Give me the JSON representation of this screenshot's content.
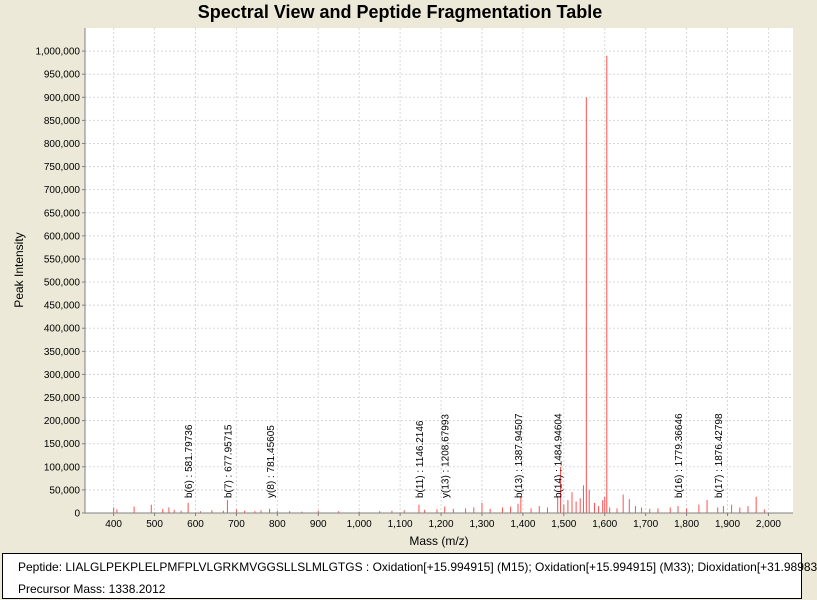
{
  "chart_data": {
    "type": "bar",
    "title": "Spectral View and Peptide Fragmentation Table",
    "xlabel": "Mass (m/z)",
    "ylabel": "Peak Intensity",
    "xlim": [
      330,
      2060
    ],
    "ylim": [
      0,
      1050000
    ],
    "x_ticks": [
      400,
      500,
      600,
      700,
      800,
      900,
      1000,
      1100,
      1200,
      1300,
      1400,
      1500,
      1600,
      1700,
      1800,
      1900,
      2000
    ],
    "x_tick_labels": [
      "400",
      "500",
      "600",
      "700",
      "800",
      "900",
      "1,000",
      "1,100",
      "1,200",
      "1,300",
      "1,400",
      "1,500",
      "1,600",
      "1,700",
      "1,800",
      "1,900",
      "2,000"
    ],
    "y_ticks": [
      0,
      50000,
      100000,
      150000,
      200000,
      250000,
      300000,
      350000,
      400000,
      450000,
      500000,
      550000,
      600000,
      650000,
      700000,
      750000,
      800000,
      850000,
      900000,
      950000,
      1000000
    ],
    "y_tick_labels": [
      "0",
      "50,000",
      "100,000",
      "150,000",
      "200,000",
      "250,000",
      "300,000",
      "350,000",
      "400,000",
      "450,000",
      "500,000",
      "550,000",
      "600,000",
      "650,000",
      "700,000",
      "750,000",
      "800,000",
      "850,000",
      "900,000",
      "950,000",
      "1,000,000"
    ],
    "grid": true,
    "series_color": "#ff5050",
    "peaks": [
      {
        "mz": 400,
        "intensity": 12000
      },
      {
        "mz": 408,
        "intensity": 8000
      },
      {
        "mz": 450,
        "intensity": 14000
      },
      {
        "mz": 492,
        "intensity": 18000
      },
      {
        "mz": 520,
        "intensity": 9000
      },
      {
        "mz": 535,
        "intensity": 12000
      },
      {
        "mz": 548,
        "intensity": 7000
      },
      {
        "mz": 565,
        "intensity": 5000
      },
      {
        "mz": 582,
        "intensity": 22000
      },
      {
        "mz": 612,
        "intensity": 4000
      },
      {
        "mz": 640,
        "intensity": 6000
      },
      {
        "mz": 668,
        "intensity": 5000
      },
      {
        "mz": 678,
        "intensity": 28000
      },
      {
        "mz": 700,
        "intensity": 8000
      },
      {
        "mz": 720,
        "intensity": 5000
      },
      {
        "mz": 745,
        "intensity": 4000
      },
      {
        "mz": 760,
        "intensity": 6000
      },
      {
        "mz": 781,
        "intensity": 9000
      },
      {
        "mz": 800,
        "intensity": 5000
      },
      {
        "mz": 830,
        "intensity": 4000
      },
      {
        "mz": 860,
        "intensity": 3000
      },
      {
        "mz": 900,
        "intensity": 5000
      },
      {
        "mz": 950,
        "intensity": 4000
      },
      {
        "mz": 1000,
        "intensity": 3000
      },
      {
        "mz": 1050,
        "intensity": 4000
      },
      {
        "mz": 1080,
        "intensity": 5000
      },
      {
        "mz": 1110,
        "intensity": 6000
      },
      {
        "mz": 1146,
        "intensity": 18000
      },
      {
        "mz": 1160,
        "intensity": 7000
      },
      {
        "mz": 1190,
        "intensity": 8000
      },
      {
        "mz": 1209,
        "intensity": 14000
      },
      {
        "mz": 1230,
        "intensity": 9000
      },
      {
        "mz": 1260,
        "intensity": 10000
      },
      {
        "mz": 1280,
        "intensity": 12000
      },
      {
        "mz": 1300,
        "intensity": 22000
      },
      {
        "mz": 1320,
        "intensity": 9000
      },
      {
        "mz": 1350,
        "intensity": 12000
      },
      {
        "mz": 1370,
        "intensity": 14000
      },
      {
        "mz": 1388,
        "intensity": 20000
      },
      {
        "mz": 1395,
        "intensity": 34000
      },
      {
        "mz": 1420,
        "intensity": 10000
      },
      {
        "mz": 1440,
        "intensity": 15000
      },
      {
        "mz": 1460,
        "intensity": 12000
      },
      {
        "mz": 1485,
        "intensity": 35000
      },
      {
        "mz": 1492,
        "intensity": 100000
      },
      {
        "mz": 1500,
        "intensity": 18000
      },
      {
        "mz": 1510,
        "intensity": 28000
      },
      {
        "mz": 1520,
        "intensity": 45000
      },
      {
        "mz": 1530,
        "intensity": 25000
      },
      {
        "mz": 1540,
        "intensity": 32000
      },
      {
        "mz": 1548,
        "intensity": 60000
      },
      {
        "mz": 1555,
        "intensity": 900000
      },
      {
        "mz": 1562,
        "intensity": 50000
      },
      {
        "mz": 1575,
        "intensity": 22000
      },
      {
        "mz": 1585,
        "intensity": 15000
      },
      {
        "mz": 1595,
        "intensity": 28000
      },
      {
        "mz": 1600,
        "intensity": 35000
      },
      {
        "mz": 1605,
        "intensity": 990000
      },
      {
        "mz": 1612,
        "intensity": 12000
      },
      {
        "mz": 1630,
        "intensity": 10000
      },
      {
        "mz": 1645,
        "intensity": 40000
      },
      {
        "mz": 1660,
        "intensity": 30000
      },
      {
        "mz": 1675,
        "intensity": 15000
      },
      {
        "mz": 1690,
        "intensity": 12000
      },
      {
        "mz": 1710,
        "intensity": 9000
      },
      {
        "mz": 1730,
        "intensity": 10000
      },
      {
        "mz": 1760,
        "intensity": 12000
      },
      {
        "mz": 1779,
        "intensity": 15000
      },
      {
        "mz": 1800,
        "intensity": 10000
      },
      {
        "mz": 1830,
        "intensity": 18000
      },
      {
        "mz": 1850,
        "intensity": 28000
      },
      {
        "mz": 1876,
        "intensity": 12000
      },
      {
        "mz": 1890,
        "intensity": 15000
      },
      {
        "mz": 1910,
        "intensity": 18000
      },
      {
        "mz": 1930,
        "intensity": 12000
      },
      {
        "mz": 1950,
        "intensity": 15000
      },
      {
        "mz": 1970,
        "intensity": 35000
      },
      {
        "mz": 1990,
        "intensity": 8000
      }
    ],
    "annotations": [
      {
        "mz": 581.79736,
        "label": "b(6) : 581.79736"
      },
      {
        "mz": 677.95715,
        "label": "b(7) : 677.95715"
      },
      {
        "mz": 781.45605,
        "label": "y(8) : 781.45605"
      },
      {
        "mz": 1146.2146,
        "label": "b(11) : 1146.2146"
      },
      {
        "mz": 1208.67993,
        "label": "y(13) : 1208.67993"
      },
      {
        "mz": 1387.94507,
        "label": "b(13) : 1387.94507"
      },
      {
        "mz": 1484.94604,
        "label": "b(14) : 1484.94604"
      },
      {
        "mz": 1779.36646,
        "label": "b(16) : 1779.36646"
      },
      {
        "mz": 1876.42798,
        "label": "b(17) : 1876.42798"
      }
    ]
  },
  "info": {
    "peptide": "Peptide: LIALGLPEKPLELPMFPLVLGRKMVGGSLLSLMLGTGS : Oxidation[+15.994915] (M15); Oxidation[+15.994915] (M33); Dioxidation[+31.98983",
    "precursor": "Precursor Mass: 1338.2012"
  }
}
